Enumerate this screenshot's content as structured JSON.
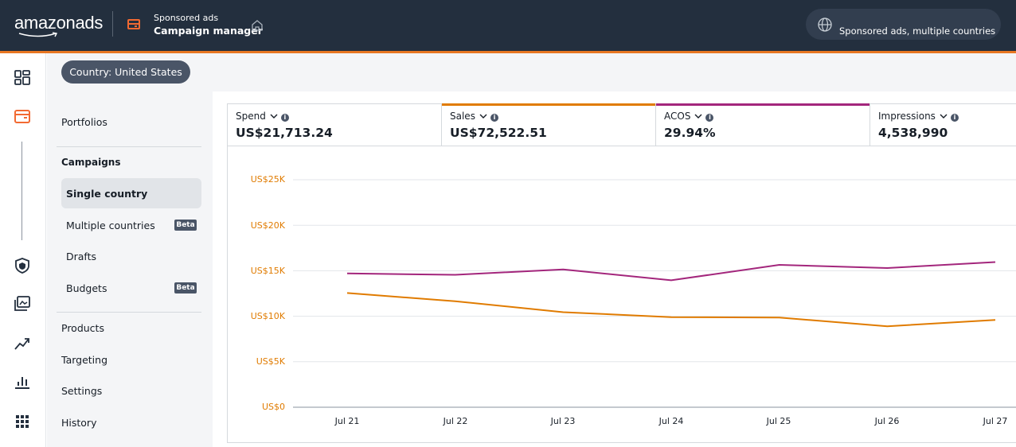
{
  "header": {
    "brand": {
      "part1": "amazon",
      "part2": "ads"
    },
    "breadcrumb_parent": "Sponsored ads",
    "breadcrumb_current": "Campaign manager",
    "scope_label": "Sponsored ads, multiple countries"
  },
  "country_filter": {
    "label": "Country: United States"
  },
  "nav": {
    "portfolios": "Portfolios",
    "campaigns": "Campaigns",
    "single_country": "Single country",
    "multiple_countries": "Multiple countries",
    "multiple_countries_badge": "Beta",
    "drafts": "Drafts",
    "budgets": "Budgets",
    "budgets_badge": "Beta",
    "products": "Products",
    "targeting": "Targeting",
    "settings": "Settings",
    "history": "History"
  },
  "metrics": [
    {
      "label": "Spend",
      "value": "US$21,713.24",
      "accent": ""
    },
    {
      "label": "Sales",
      "value": "US$72,522.51",
      "accent": "#e07b00"
    },
    {
      "label": "ACOS",
      "value": "29.94%",
      "accent": "#a3267c"
    },
    {
      "label": "Impressions",
      "value": "4,538,990",
      "accent": ""
    }
  ],
  "colors": {
    "sales": "#e07b00",
    "acos": "#a3267c",
    "header_bg": "#232f3e",
    "accent": "#e87722"
  },
  "chart_data": {
    "type": "line",
    "categories": [
      "Jul 21",
      "Jul 22",
      "Jul 23",
      "Jul 24",
      "Jul 25",
      "Jul 26",
      "Jul 27"
    ],
    "y_tick_labels": [
      "US$0",
      "US$5K",
      "US$10K",
      "US$15K",
      "US$20K",
      "US$25K"
    ],
    "ylim": [
      0,
      25000
    ],
    "grid": true,
    "series": [
      {
        "color": "#a3267c",
        "values": [
          14700,
          14550,
          15150,
          13950,
          15650,
          15300,
          15950
        ]
      },
      {
        "color": "#e07b00",
        "values": [
          12550,
          11650,
          10450,
          9900,
          9850,
          8900,
          9600
        ]
      }
    ]
  }
}
